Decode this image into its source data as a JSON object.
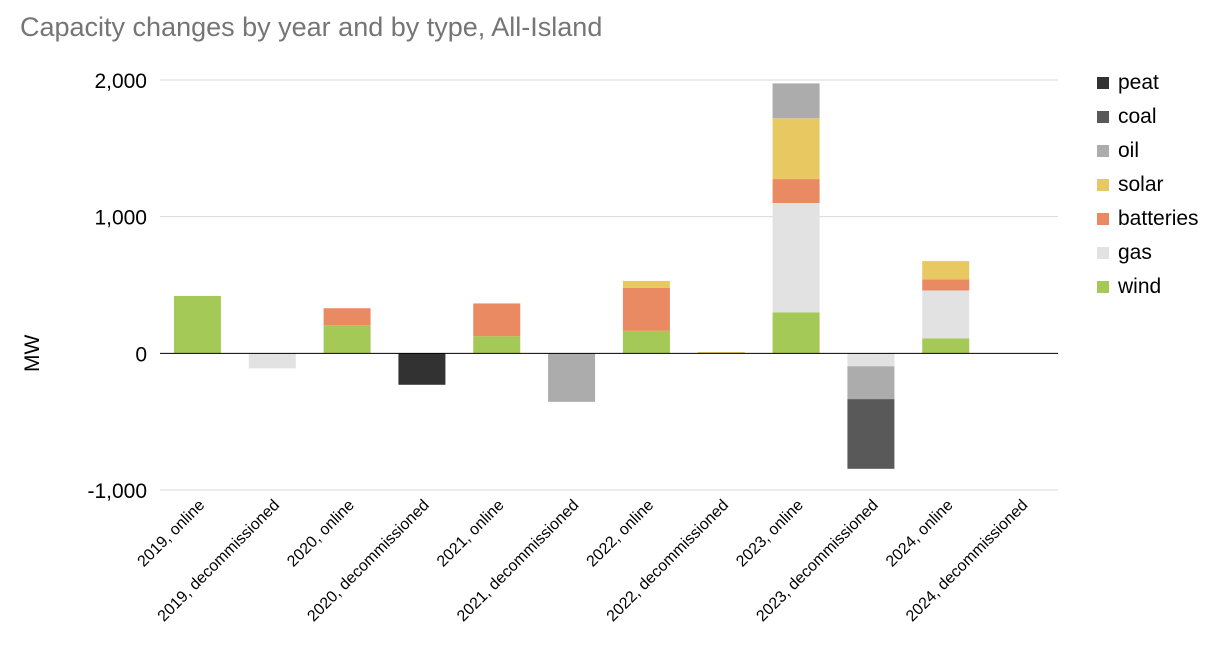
{
  "chart_data": {
    "type": "bar",
    "stacked": true,
    "title": "Capacity changes by year and by type, All-Island",
    "xlabel": "",
    "ylabel": "MW",
    "ylim": [
      -1000,
      2000
    ],
    "yticks": [
      2000,
      1000,
      0,
      -1000
    ],
    "ytick_labels": [
      "2,000",
      "1,000",
      "0",
      "-1,000"
    ],
    "grid": true,
    "legend_position": "right",
    "categories": [
      "2019, online",
      "2019, decommissioned",
      "2020, online",
      "2020, decommissioned",
      "2021, online",
      "2021, decommissioned",
      "2022, online",
      "2022, decommissioned",
      "2023, online",
      "2023, decommissioned",
      "2024, online",
      "2024, decommissioned"
    ],
    "series": [
      {
        "name": "wind",
        "color": "#a5c956",
        "values": [
          420,
          0,
          205,
          0,
          125,
          0,
          165,
          0,
          300,
          0,
          110,
          0
        ]
      },
      {
        "name": "gas",
        "color": "#e2e2e2",
        "values": [
          0,
          -110,
          0,
          0,
          0,
          0,
          0,
          0,
          800,
          -95,
          350,
          0
        ]
      },
      {
        "name": "batteries",
        "color": "#e98a62",
        "values": [
          0,
          0,
          125,
          0,
          240,
          0,
          315,
          0,
          175,
          0,
          80,
          0
        ]
      },
      {
        "name": "solar",
        "color": "#e8c961",
        "values": [
          0,
          0,
          0,
          0,
          0,
          0,
          50,
          10,
          445,
          0,
          135,
          0
        ]
      },
      {
        "name": "oil",
        "color": "#acacac",
        "values": [
          0,
          0,
          0,
          0,
          0,
          -355,
          0,
          0,
          255,
          -240,
          0,
          0
        ]
      },
      {
        "name": "coal",
        "color": "#595959",
        "values": [
          0,
          0,
          0,
          0,
          0,
          0,
          0,
          0,
          0,
          -510,
          0,
          0
        ]
      },
      {
        "name": "peat",
        "color": "#323232",
        "values": [
          0,
          0,
          0,
          -230,
          0,
          0,
          0,
          0,
          0,
          0,
          0,
          0
        ]
      }
    ],
    "legend_order": [
      "peat",
      "coal",
      "oil",
      "solar",
      "batteries",
      "gas",
      "wind"
    ]
  }
}
